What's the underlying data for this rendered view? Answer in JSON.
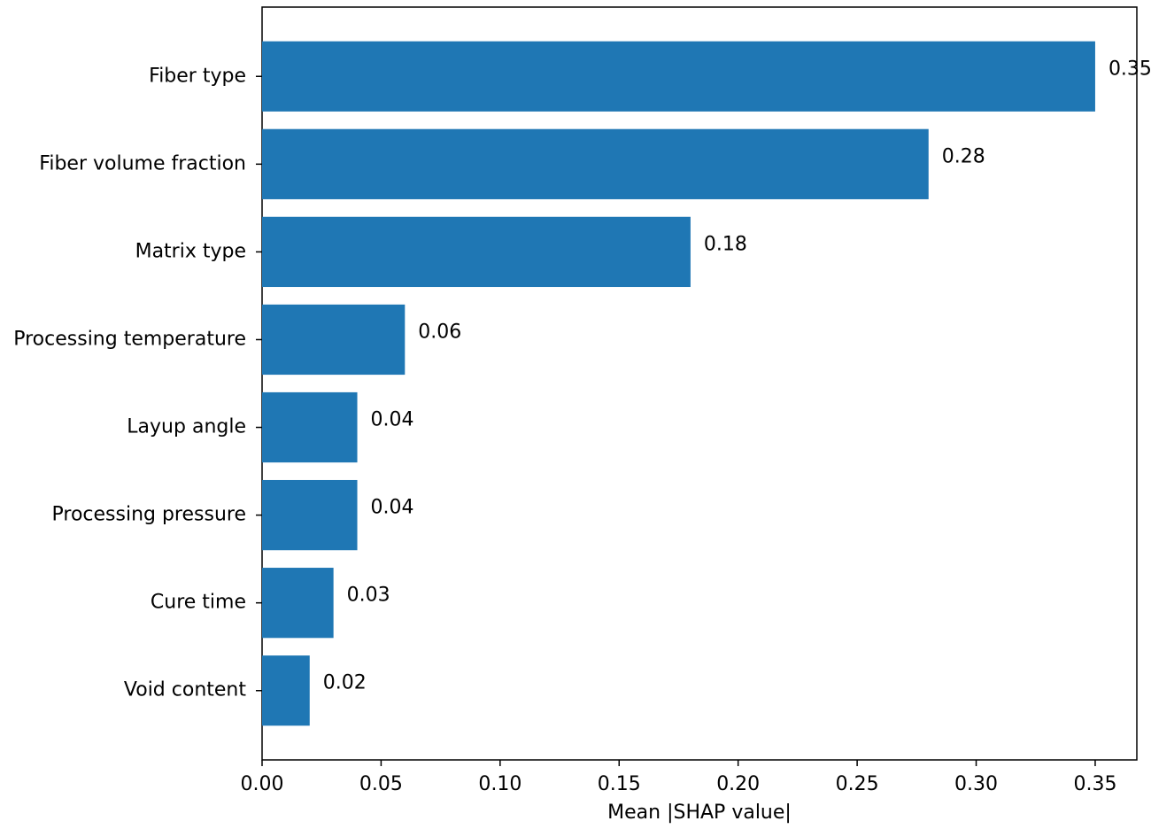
{
  "chart_data": {
    "type": "barh",
    "xlabel": "Mean |SHAP value|",
    "categories": [
      "Fiber type",
      "Fiber volume fraction",
      "Matrix type",
      "Processing temperature",
      "Layup angle",
      "Processing pressure",
      "Cure time",
      "Void content"
    ],
    "values": [
      0.35,
      0.28,
      0.18,
      0.06,
      0.04,
      0.04,
      0.03,
      0.02
    ],
    "color": "#1f77b4",
    "xlim": [
      0,
      0.3675
    ],
    "xticks": [
      {
        "value": 0,
        "label": "0.00"
      },
      {
        "value": 0.05,
        "label": "0.05"
      },
      {
        "value": 0.1,
        "label": "0.10"
      },
      {
        "value": 0.15,
        "label": "0.15"
      },
      {
        "value": 0.2,
        "label": "0.20"
      },
      {
        "value": 0.25,
        "label": "0.25"
      },
      {
        "value": 0.3,
        "label": "0.30"
      },
      {
        "value": 0.35,
        "label": "0.35"
      }
    ],
    "grid": false
  }
}
